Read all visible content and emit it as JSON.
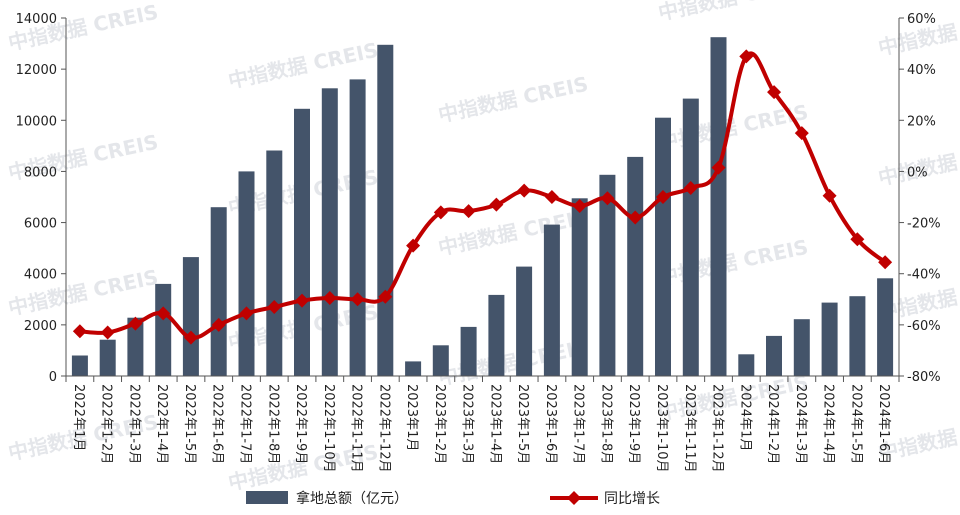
{
  "chart_data": {
    "type": "bar+line",
    "categories": [
      "2022年1月",
      "2022年1-2月",
      "2022年1-3月",
      "2022年1-4月",
      "2022年1-5月",
      "2022年1-6月",
      "2022年1-7月",
      "2022年1-8月",
      "2022年1-9月",
      "2022年1-10月",
      "2022年1-11月",
      "2022年1-12月",
      "2023年1月",
      "2023年1-2月",
      "2023年1-3月",
      "2023年1-4月",
      "2023年1-5月",
      "2023年1-6月",
      "2023年1-7月",
      "2023年1-8月",
      "2023年1-9月",
      "2023年1-10月",
      "2023年1-11月",
      "2023年1-12月",
      "2024年1月",
      "2024年1-2月",
      "2024年1-3月",
      "2024年1-4月",
      "2024年1-5月",
      "2024年1-6月"
    ],
    "series": [
      {
        "name": "拿地总额（亿元）",
        "type": "bar",
        "axis": "left",
        "color": "#44546a",
        "values": [
          800,
          1420,
          2280,
          3600,
          4650,
          6600,
          8000,
          8820,
          10450,
          11250,
          11600,
          12950,
          570,
          1200,
          1920,
          3170,
          4280,
          5920,
          6950,
          7870,
          8570,
          10100,
          10850,
          13250,
          850,
          1570,
          2220,
          2870,
          3120,
          3820
        ]
      },
      {
        "name": "同比增长",
        "type": "line",
        "axis": "right",
        "color": "#c00000",
        "values": [
          -62.5,
          -63,
          -59.5,
          -55.5,
          -65,
          -60,
          -55.5,
          -53,
          -50.5,
          -49.5,
          -50,
          -49,
          -29,
          -16,
          -15.5,
          -13,
          -7.5,
          -10,
          -13.5,
          -10.5,
          -18,
          -10,
          -6.5,
          1.5,
          45,
          31,
          15,
          -9.5,
          -26.5,
          -35.5
        ]
      }
    ],
    "ylim_left": [
      0,
      14000
    ],
    "yticks_left": [
      "0",
      "2000",
      "4000",
      "6000",
      "8000",
      "10000",
      "12000",
      "14000"
    ],
    "ylim_right": [
      -80,
      60
    ],
    "yticks_right": [
      "-80%",
      "-60%",
      "-40%",
      "-20%",
      "0%",
      "20%",
      "40%",
      "60%"
    ],
    "legend_position": "bottom",
    "grid": false
  },
  "legend": {
    "bar_label": "拿地总额（亿元）",
    "line_label": "同比增长"
  },
  "watermark": {
    "text": "中指数据 CREIS"
  }
}
